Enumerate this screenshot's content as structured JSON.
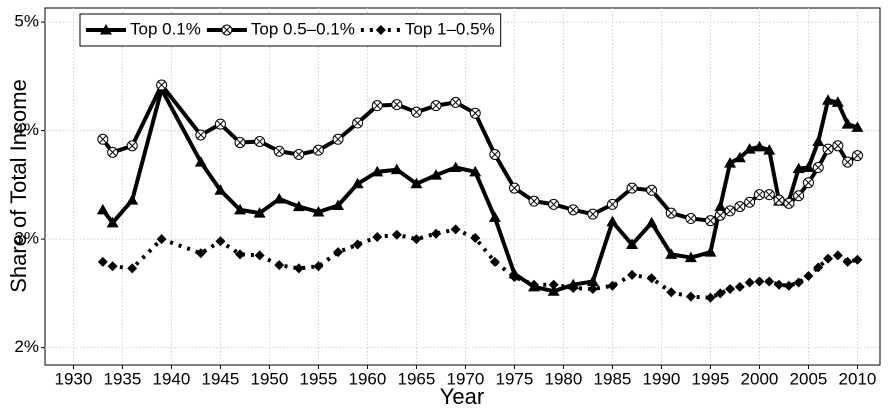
{
  "chart_data": {
    "type": "line",
    "x_label": "Year",
    "y_label": "Share of Total Income",
    "x": [
      1933,
      1934,
      1936,
      1939,
      1943,
      1945,
      1947,
      1949,
      1951,
      1953,
      1955,
      1957,
      1959,
      1961,
      1963,
      1965,
      1967,
      1969,
      1971,
      1973,
      1975,
      1977,
      1979,
      1981,
      1983,
      1985,
      1987,
      1989,
      1991,
      1993,
      1995,
      1996,
      1997,
      1998,
      1999,
      2000,
      2001,
      2002,
      2003,
      2004,
      2005,
      2006,
      2007,
      2008,
      2009,
      2010
    ],
    "series": [
      {
        "name": "Top 0.1%",
        "color": "#000000",
        "marker": "triangle",
        "dash": "solid",
        "values": [
          3.27,
          3.15,
          3.36,
          4.38,
          3.71,
          3.45,
          3.27,
          3.24,
          3.37,
          3.3,
          3.25,
          3.31,
          3.51,
          3.62,
          3.64,
          3.51,
          3.59,
          3.66,
          3.62,
          3.2,
          2.68,
          2.56,
          2.52,
          2.58,
          2.61,
          3.16,
          2.95,
          3.15,
          2.86,
          2.83,
          2.88,
          3.3,
          3.7,
          3.75,
          3.83,
          3.85,
          3.82,
          3.35,
          3.35,
          3.65,
          3.66,
          3.9,
          4.28,
          4.26,
          4.06,
          4.03
        ]
      },
      {
        "name": "Top 0.5–0.1%",
        "color": "#000000",
        "marker": "circle-x",
        "dash": "solid",
        "values": [
          3.92,
          3.8,
          3.86,
          4.42,
          3.96,
          4.06,
          3.89,
          3.9,
          3.81,
          3.78,
          3.82,
          3.92,
          4.07,
          4.23,
          4.24,
          4.17,
          4.23,
          4.26,
          4.16,
          3.78,
          3.47,
          3.35,
          3.32,
          3.27,
          3.23,
          3.32,
          3.47,
          3.45,
          3.24,
          3.19,
          3.17,
          3.22,
          3.26,
          3.3,
          3.34,
          3.41,
          3.41,
          3.36,
          3.33,
          3.4,
          3.52,
          3.66,
          3.83,
          3.86,
          3.71,
          3.77
        ]
      },
      {
        "name": "Top 1–0.5%",
        "color": "#000000",
        "marker": "diamond",
        "dash": "dotted",
        "values": [
          2.79,
          2.75,
          2.73,
          3.0,
          2.87,
          2.98,
          2.86,
          2.85,
          2.76,
          2.73,
          2.75,
          2.88,
          2.95,
          3.02,
          3.04,
          3.0,
          3.05,
          3.09,
          3.01,
          2.79,
          2.65,
          2.58,
          2.58,
          2.55,
          2.54,
          2.57,
          2.67,
          2.64,
          2.51,
          2.47,
          2.46,
          2.5,
          2.54,
          2.56,
          2.6,
          2.61,
          2.61,
          2.58,
          2.57,
          2.6,
          2.66,
          2.74,
          2.82,
          2.85,
          2.79,
          2.81
        ]
      }
    ],
    "xlim": [
      1927.1,
      2012.3
    ],
    "xticks": [
      1930,
      1935,
      1940,
      1945,
      1950,
      1955,
      1960,
      1965,
      1970,
      1975,
      1980,
      1985,
      1990,
      1995,
      2000,
      2005,
      2010
    ],
    "ylim": [
      1.84,
      5.13
    ],
    "yticks": [
      {
        "value": 2,
        "label": "2%"
      },
      {
        "value": 3,
        "label": "3%"
      },
      {
        "value": 4,
        "label": "4%"
      },
      {
        "value": 5,
        "label": "5%"
      }
    ],
    "grid": true,
    "legend_position": "top-left"
  }
}
